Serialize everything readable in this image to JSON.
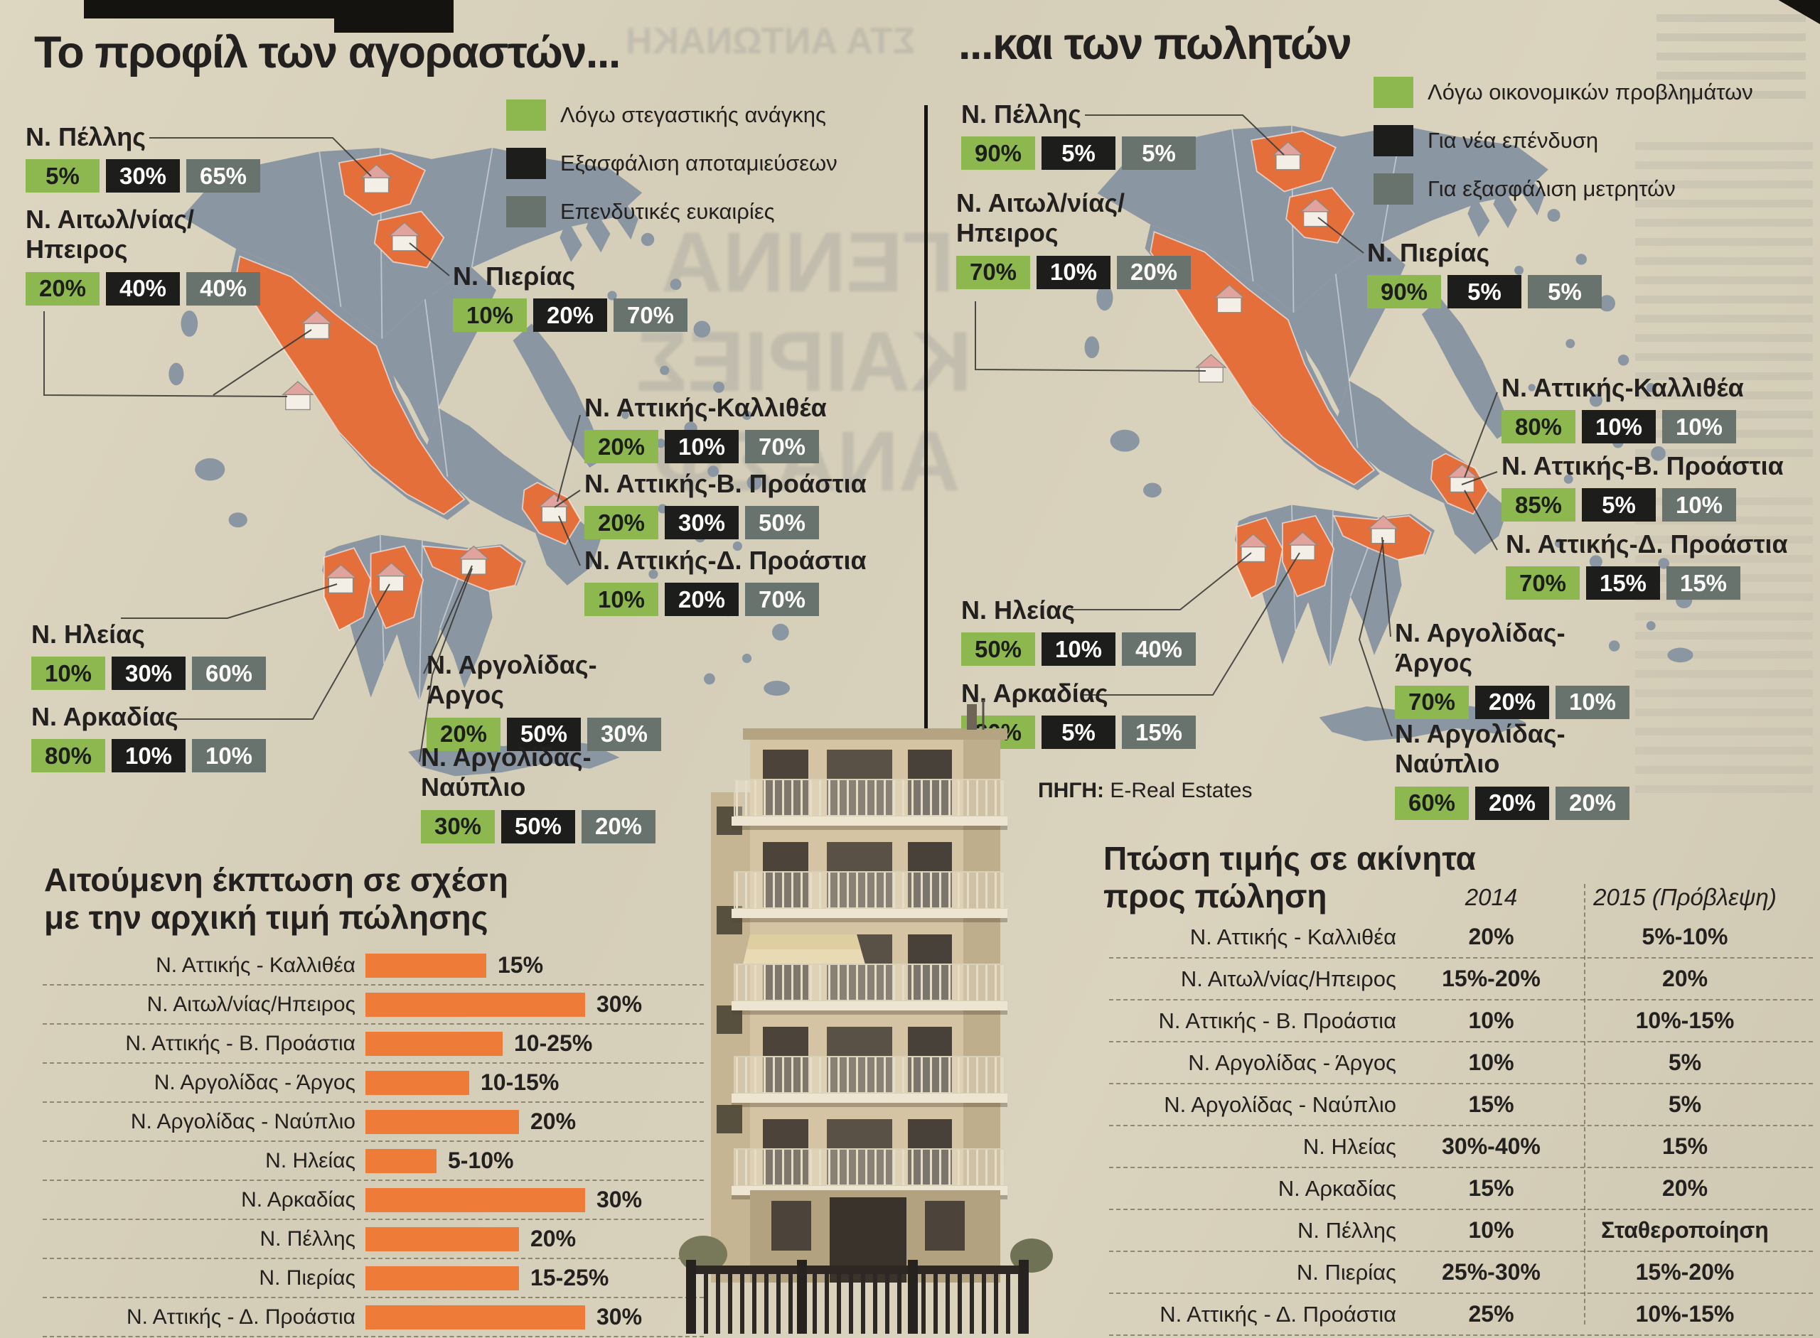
{
  "page": {
    "background": "#d7d0ba"
  },
  "source": {
    "label": "ΠΗΓΗ:",
    "value": "E-Real Estates"
  },
  "colors": {
    "legend_green": "#8cb84f",
    "legend_black": "#1d1d1b",
    "legend_gray": "#68736d",
    "map_land": "#8b96a3",
    "map_highlight": "#e46f3a",
    "bar_orange": "#ee7b38"
  },
  "bleedthrough": {
    "top_line": "ΣΤΑ ΑΝΤΩΝΑΚΗ",
    "big_words": [
      "ΓΕΝΝΑ",
      "ΚΑΙΡΙΕΣ",
      "ΑΝΑΣΦ"
    ]
  },
  "chart_data": [
    {
      "id": "buyers",
      "type": "map-choropleth-chips",
      "title": "Το προφίλ των αγοραστών...",
      "legend": [
        {
          "label": "Λόγω στεγαστικής ανάγκης",
          "color": "#8cb84f"
        },
        {
          "label": "Εξασφάλιση αποταμιεύσεων",
          "color": "#1d1d1b"
        },
        {
          "label": "Επενδυτικές ευκαιρίες",
          "color": "#68736d"
        }
      ],
      "regions": [
        {
          "lines": [
            "Ν. Πέλλης"
          ],
          "values": [
            "5%",
            "30%",
            "65%"
          ]
        },
        {
          "lines": [
            "Ν. Αιτωλ/νίας/",
            "Ηπειρος"
          ],
          "values": [
            "20%",
            "40%",
            "40%"
          ]
        },
        {
          "lines": [
            "Ν. Πιερίας"
          ],
          "values": [
            "10%",
            "20%",
            "70%"
          ]
        },
        {
          "lines": [
            "Ν. Αττικής-Καλλιθέα"
          ],
          "values": [
            "20%",
            "10%",
            "70%"
          ]
        },
        {
          "lines": [
            "Ν. Αττικής-Β. Προάστια"
          ],
          "values": [
            "20%",
            "30%",
            "50%"
          ]
        },
        {
          "lines": [
            "Ν. Αττικής-Δ. Προάστια"
          ],
          "values": [
            "10%",
            "20%",
            "70%"
          ]
        },
        {
          "lines": [
            "Ν. Ηλείας"
          ],
          "values": [
            "10%",
            "30%",
            "60%"
          ]
        },
        {
          "lines": [
            "Ν. Αρκαδίας"
          ],
          "values": [
            "80%",
            "10%",
            "10%"
          ]
        },
        {
          "lines": [
            "Ν. Αργολίδας-",
            "Άργος"
          ],
          "values": [
            "20%",
            "50%",
            "30%"
          ]
        },
        {
          "lines": [
            "Ν. Αργολίδας-",
            "Ναύπλιο"
          ],
          "values": [
            "30%",
            "50%",
            "20%"
          ]
        }
      ]
    },
    {
      "id": "sellers",
      "type": "map-choropleth-chips",
      "title": "...και των πωλητών",
      "legend": [
        {
          "label": "Λόγω οικονομικών προβλημάτων",
          "color": "#8cb84f"
        },
        {
          "label": "Για νέα επένδυση",
          "color": "#1d1d1b"
        },
        {
          "label": "Για εξασφάλιση μετρητών",
          "color": "#68736d"
        }
      ],
      "regions": [
        {
          "lines": [
            "Ν. Πέλλης"
          ],
          "values": [
            "90%",
            "5%",
            "5%"
          ]
        },
        {
          "lines": [
            "Ν. Αιτωλ/νίας/",
            "Ηπειρος"
          ],
          "values": [
            "70%",
            "10%",
            "20%"
          ]
        },
        {
          "lines": [
            "Ν. Πιερίας"
          ],
          "values": [
            "90%",
            "5%",
            "5%"
          ]
        },
        {
          "lines": [
            "Ν. Αττικής-Καλλιθέα"
          ],
          "values": [
            "80%",
            "10%",
            "10%"
          ]
        },
        {
          "lines": [
            "Ν. Αττικής-Β. Προάστια"
          ],
          "values": [
            "85%",
            "5%",
            "10%"
          ]
        },
        {
          "lines": [
            "Ν. Αττικής-Δ. Προάστια"
          ],
          "values": [
            "70%",
            "15%",
            "15%"
          ]
        },
        {
          "lines": [
            "Ν. Ηλείας"
          ],
          "values": [
            "50%",
            "10%",
            "40%"
          ]
        },
        {
          "lines": [
            "Ν. Αρκαδίας"
          ],
          "values": [
            "80%",
            "5%",
            "15%"
          ]
        },
        {
          "lines": [
            "Ν. Αργολίδας-",
            "Άργος"
          ],
          "values": [
            "70%",
            "20%",
            "10%"
          ]
        },
        {
          "lines": [
            "Ν. Αργολίδας-",
            "Ναύπλιο"
          ],
          "values": [
            "60%",
            "20%",
            "20%"
          ]
        }
      ]
    },
    {
      "id": "discount",
      "type": "bar",
      "title_lines": [
        "Αιτούμενη έκπτωση σε σχέση",
        "με την αρχική τιμή πώλησης"
      ],
      "bar_color": "#ee7b38",
      "rows": [
        {
          "name": "Ν. Αττικής - Καλλιθέα",
          "label": "15%",
          "value": 15
        },
        {
          "name": "Ν. Αιτωλ/νίας/Ηπειρος",
          "label": "30%",
          "value": 30
        },
        {
          "name": "Ν. Αττικής - Β. Προάστια",
          "label": "10-25%",
          "value": 17.5
        },
        {
          "name": "Ν. Αργολίδας - Άργος",
          "label": "10-15%",
          "value": 12.5
        },
        {
          "name": "Ν. Αργολίδας - Ναύπλιο",
          "label": "20%",
          "value": 20
        },
        {
          "name": "Ν. Ηλείας",
          "label": "5-10%",
          "value": 7.5
        },
        {
          "name": "Ν. Αρκαδίας",
          "label": "30%",
          "value": 30
        },
        {
          "name": "Ν. Πέλλης",
          "label": "20%",
          "value": 20
        },
        {
          "name": "Ν. Πιερίας",
          "label": "15-25%",
          "value": 20
        },
        {
          "name": "Ν. Αττικής - Δ. Προάστια",
          "label": "30%",
          "value": 30
        }
      ]
    },
    {
      "id": "price_drop",
      "type": "table",
      "title_lines": [
        "Πτώση τιμής σε ακίνητα",
        "προς πώληση"
      ],
      "columns": [
        "2014",
        "2015 (Πρόβλεψη)"
      ],
      "rows": [
        {
          "name": "Ν. Αττικής - Καλλιθέα",
          "y2014": "20%",
          "y2015": "5%-10%"
        },
        {
          "name": "Ν. Αιτωλ/νίας/Ηπειρος",
          "y2014": "15%-20%",
          "y2015": "20%"
        },
        {
          "name": "Ν. Αττικής - Β. Προάστια",
          "y2014": "10%",
          "y2015": "10%-15%"
        },
        {
          "name": "Ν. Αργολίδας - Άργος",
          "y2014": "10%",
          "y2015": "5%"
        },
        {
          "name": "Ν. Αργολίδας - Ναύπλιο",
          "y2014": "15%",
          "y2015": "5%"
        },
        {
          "name": "Ν. Ηλείας",
          "y2014": "30%-40%",
          "y2015": "15%"
        },
        {
          "name": "Ν. Αρκαδίας",
          "y2014": "15%",
          "y2015": "20%"
        },
        {
          "name": "Ν. Πέλλης",
          "y2014": "10%",
          "y2015": "Σταθεροποίηση"
        },
        {
          "name": "Ν. Πιερίας",
          "y2014": "25%-30%",
          "y2015": "15%-20%"
        },
        {
          "name": "Ν. Αττικής - Δ. Προάστια",
          "y2014": "25%",
          "y2015": "10%-15%"
        }
      ]
    }
  ]
}
